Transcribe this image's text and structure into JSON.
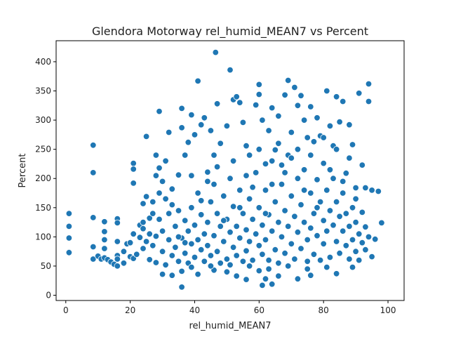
{
  "chart_data": {
    "type": "scatter",
    "title": "Glendora Motorway rel_humid_MEAN7 vs Percent",
    "xlabel": "rel_humid_MEAN7",
    "ylabel": "Percent",
    "xlim": [
      -3,
      105
    ],
    "ylim": [
      -9,
      436
    ],
    "xticks": [
      0,
      20,
      40,
      60,
      80,
      100
    ],
    "yticks": [
      0,
      50,
      100,
      150,
      200,
      250,
      300,
      350,
      400
    ],
    "grid": false,
    "marker_color": "#1f77b4",
    "marker_edge": "#ffffff",
    "points": [
      [
        1,
        140
      ],
      [
        1,
        118
      ],
      [
        1,
        98
      ],
      [
        1,
        74
      ],
      [
        1,
        73
      ],
      [
        8.5,
        257
      ],
      [
        8.5,
        210
      ],
      [
        8.5,
        133
      ],
      [
        8.5,
        83
      ],
      [
        8.5,
        62
      ],
      [
        10,
        67
      ],
      [
        11,
        62
      ],
      [
        12,
        126
      ],
      [
        12,
        109
      ],
      [
        12,
        95
      ],
      [
        12,
        80
      ],
      [
        12,
        64
      ],
      [
        13,
        61
      ],
      [
        14,
        57
      ],
      [
        15,
        53
      ],
      [
        16,
        131
      ],
      [
        16,
        124
      ],
      [
        16,
        92
      ],
      [
        16,
        68
      ],
      [
        16,
        62
      ],
      [
        16,
        50
      ],
      [
        18,
        55
      ],
      [
        18,
        75
      ],
      [
        19,
        88
      ],
      [
        20,
        90
      ],
      [
        20,
        66
      ],
      [
        21,
        226
      ],
      [
        21,
        216
      ],
      [
        21,
        192
      ],
      [
        21,
        105
      ],
      [
        21,
        63
      ],
      [
        23,
        120
      ],
      [
        23,
        99
      ],
      [
        24,
        157
      ],
      [
        24,
        114
      ],
      [
        24,
        80
      ],
      [
        25,
        272
      ],
      [
        25,
        169
      ],
      [
        26,
        132
      ],
      [
        27,
        160
      ],
      [
        28,
        240
      ],
      [
        28,
        205
      ],
      [
        29,
        315
      ],
      [
        29,
        218
      ],
      [
        29,
        175
      ],
      [
        30,
        195
      ],
      [
        31,
        230
      ],
      [
        32,
        279
      ],
      [
        33,
        155
      ],
      [
        35,
        206
      ],
      [
        36,
        320
      ],
      [
        36,
        287
      ],
      [
        36,
        14
      ],
      [
        36,
        41
      ],
      [
        37,
        240
      ],
      [
        38,
        262
      ],
      [
        39,
        309
      ],
      [
        40,
        275
      ],
      [
        41,
        367
      ],
      [
        42,
        292
      ],
      [
        43,
        304
      ],
      [
        44,
        211
      ],
      [
        45,
        282
      ],
      [
        46,
        240
      ],
      [
        46.5,
        416
      ],
      [
        47,
        328
      ],
      [
        48,
        260
      ],
      [
        50,
        290
      ],
      [
        51,
        386
      ],
      [
        52,
        335
      ],
      [
        53,
        340
      ],
      [
        54,
        330
      ],
      [
        55,
        296
      ],
      [
        56,
        256
      ],
      [
        57,
        240
      ],
      [
        59,
        326
      ],
      [
        60,
        361
      ],
      [
        60,
        344
      ],
      [
        61,
        300
      ],
      [
        62,
        225
      ],
      [
        63,
        282
      ],
      [
        64,
        321
      ],
      [
        65,
        249
      ],
      [
        66,
        307
      ],
      [
        67,
        223
      ],
      [
        68,
        343
      ],
      [
        69,
        368
      ],
      [
        70,
        279
      ],
      [
        71,
        356
      ],
      [
        72,
        325
      ],
      [
        73,
        342
      ],
      [
        74,
        300
      ],
      [
        75,
        270
      ],
      [
        76,
        323
      ],
      [
        77,
        263
      ],
      [
        78,
        304
      ],
      [
        79,
        273
      ],
      [
        80,
        226
      ],
      [
        81,
        350
      ],
      [
        82,
        290
      ],
      [
        83,
        256
      ],
      [
        84,
        340
      ],
      [
        85,
        297
      ],
      [
        86,
        332
      ],
      [
        87,
        209
      ],
      [
        88,
        292
      ],
      [
        89,
        258
      ],
      [
        90,
        184
      ],
      [
        91,
        346
      ],
      [
        92,
        223
      ],
      [
        93,
        184
      ],
      [
        94,
        362
      ],
      [
        94,
        332
      ],
      [
        95,
        180
      ],
      [
        96,
        96
      ],
      [
        97,
        178
      ],
      [
        98,
        124
      ],
      [
        95,
        66
      ],
      [
        93,
        117
      ],
      [
        92,
        142
      ],
      [
        61,
        17
      ],
      [
        62,
        28
      ],
      [
        64,
        19
      ],
      [
        72,
        28
      ],
      [
        56,
        27
      ],
      [
        60,
        42
      ],
      [
        30,
        36
      ],
      [
        33,
        34
      ],
      [
        41,
        36
      ],
      [
        46,
        43
      ],
      [
        50,
        40
      ],
      [
        53,
        33
      ],
      [
        66,
        33
      ],
      [
        76,
        34
      ],
      [
        84,
        37
      ],
      [
        89,
        48
      ],
      [
        22,
        70
      ],
      [
        25,
        92
      ],
      [
        26,
        61
      ],
      [
        27,
        85
      ],
      [
        28,
        101
      ],
      [
        28,
        56
      ],
      [
        29,
        130
      ],
      [
        30,
        75
      ],
      [
        30,
        110
      ],
      [
        31,
        52
      ],
      [
        32,
        95
      ],
      [
        32,
        140
      ],
      [
        33,
        68
      ],
      [
        34,
        118
      ],
      [
        34,
        82
      ],
      [
        35,
        58
      ],
      [
        35,
        145
      ],
      [
        36,
        98
      ],
      [
        37,
        72
      ],
      [
        37,
        128
      ],
      [
        38,
        110
      ],
      [
        38,
        55
      ],
      [
        39,
        88
      ],
      [
        39,
        150
      ],
      [
        40,
        65
      ],
      [
        40,
        120
      ],
      [
        41,
        95
      ],
      [
        41,
        175
      ],
      [
        42,
        78
      ],
      [
        42,
        138
      ],
      [
        43,
        58
      ],
      [
        43,
        105
      ],
      [
        44,
        125
      ],
      [
        44,
        85
      ],
      [
        45,
        160
      ],
      [
        45,
        68
      ],
      [
        46,
        102
      ],
      [
        46,
        190
      ],
      [
        47,
        75
      ],
      [
        47,
        140
      ],
      [
        48,
        118
      ],
      [
        48,
        55
      ],
      [
        49,
        92
      ],
      [
        49,
        170
      ],
      [
        50,
        62
      ],
      [
        50,
        130
      ],
      [
        51,
        108
      ],
      [
        51,
        200
      ],
      [
        52,
        82
      ],
      [
        52,
        152
      ],
      [
        53,
        68
      ],
      [
        53,
        118
      ],
      [
        54,
        98
      ],
      [
        54,
        180
      ],
      [
        55,
        58
      ],
      [
        55,
        140
      ],
      [
        56,
        112
      ],
      [
        56,
        76
      ],
      [
        57,
        165
      ],
      [
        57,
        92
      ],
      [
        58,
        130
      ],
      [
        58,
        60
      ],
      [
        59,
        105
      ],
      [
        59,
        210
      ],
      [
        60,
        85
      ],
      [
        60,
        150
      ],
      [
        61,
        120
      ],
      [
        61,
        70
      ],
      [
        62,
        180
      ],
      [
        62,
        95
      ],
      [
        63,
        138
      ],
      [
        63,
        60
      ],
      [
        64,
        110
      ],
      [
        64,
        230
      ],
      [
        65,
        78
      ],
      [
        65,
        160
      ],
      [
        66,
        125
      ],
      [
        66,
        55
      ],
      [
        67,
        190
      ],
      [
        67,
        100
      ],
      [
        68,
        145
      ],
      [
        68,
        72
      ],
      [
        69,
        118
      ],
      [
        69,
        240
      ],
      [
        70,
        88
      ],
      [
        70,
        170
      ],
      [
        71,
        135
      ],
      [
        71,
        62
      ],
      [
        72,
        200
      ],
      [
        72,
        108
      ],
      [
        73,
        155
      ],
      [
        73,
        80
      ],
      [
        74,
        125
      ],
      [
        74,
        215
      ],
      [
        75,
        95
      ],
      [
        75,
        58
      ],
      [
        76,
        175
      ],
      [
        76,
        115
      ],
      [
        77,
        140
      ],
      [
        77,
        70
      ],
      [
        78,
        198
      ],
      [
        78,
        102
      ],
      [
        79,
        160
      ],
      [
        79,
        60
      ],
      [
        80,
        128
      ],
      [
        80,
        88
      ],
      [
        81,
        180
      ],
      [
        81,
        110
      ],
      [
        82,
        145
      ],
      [
        82,
        65
      ],
      [
        83,
        120
      ],
      [
        83,
        200
      ],
      [
        84,
        92
      ],
      [
        84,
        160
      ],
      [
        85,
        72
      ],
      [
        85,
        135
      ],
      [
        86,
        110
      ],
      [
        86,
        175
      ],
      [
        87,
        85
      ],
      [
        87,
        140
      ],
      [
        88,
        62
      ],
      [
        88,
        118
      ],
      [
        89,
        95
      ],
      [
        89,
        150
      ],
      [
        90,
        75
      ],
      [
        90,
        125
      ],
      [
        91,
        105
      ],
      [
        91,
        60
      ],
      [
        92,
        90
      ],
      [
        93,
        78
      ],
      [
        94,
        100
      ],
      [
        24,
        125
      ],
      [
        26,
        105
      ],
      [
        27,
        140
      ],
      [
        31,
        165
      ],
      [
        33,
        182
      ],
      [
        35,
        100
      ],
      [
        37,
        90
      ],
      [
        39,
        205
      ],
      [
        42,
        162
      ],
      [
        44,
        195
      ],
      [
        47,
        220
      ],
      [
        49,
        128
      ],
      [
        52,
        230
      ],
      [
        54,
        150
      ],
      [
        56,
        205
      ],
      [
        58,
        185
      ],
      [
        60,
        250
      ],
      [
        62,
        140
      ],
      [
        64,
        190
      ],
      [
        66,
        260
      ],
      [
        68,
        210
      ],
      [
        70,
        235
      ],
      [
        72,
        250
      ],
      [
        74,
        180
      ],
      [
        76,
        240
      ],
      [
        78,
        150
      ],
      [
        80,
        270
      ],
      [
        82,
        215
      ],
      [
        84,
        250
      ],
      [
        86,
        195
      ],
      [
        88,
        235
      ],
      [
        90,
        165
      ],
      [
        57,
        50
      ],
      [
        63,
        45
      ],
      [
        69,
        50
      ],
      [
        75,
        45
      ],
      [
        81,
        48
      ],
      [
        45,
        50
      ],
      [
        39,
        48
      ],
      [
        51,
        52
      ]
    ]
  }
}
